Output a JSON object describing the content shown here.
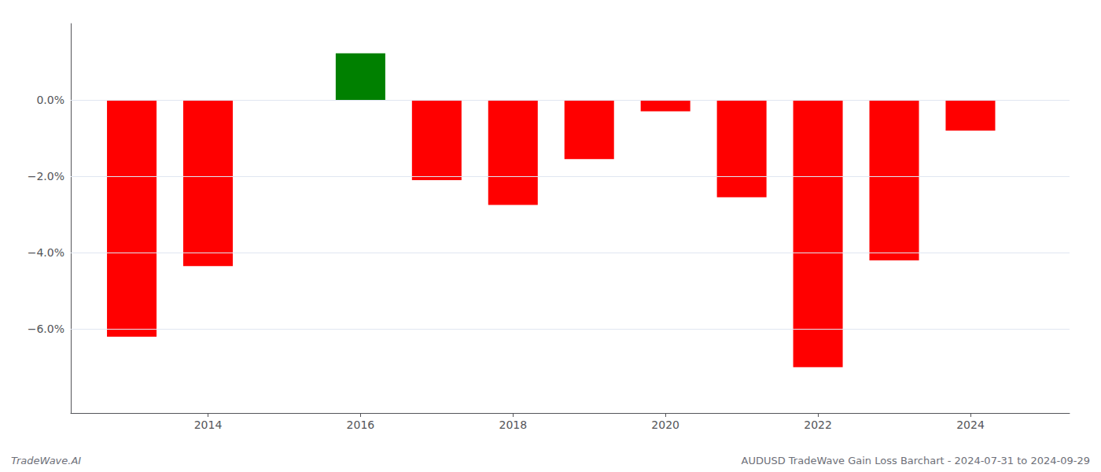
{
  "chart_data": {
    "type": "bar",
    "x": [
      2013,
      2014,
      2015,
      2016,
      2017,
      2018,
      2019,
      2020,
      2021,
      2022,
      2023,
      2024
    ],
    "values": [
      -6.2,
      -4.35,
      0.0,
      1.22,
      -2.1,
      -2.75,
      -1.55,
      -0.3,
      -2.55,
      -7.0,
      -4.2,
      -0.8
    ],
    "colors": [
      "#ff0000",
      "#ff0000",
      "#ff0000",
      "#008000",
      "#ff0000",
      "#ff0000",
      "#ff0000",
      "#ff0000",
      "#ff0000",
      "#ff0000",
      "#ff0000",
      "#ff0000"
    ],
    "xlim": [
      2012.2,
      2025.3
    ],
    "xticks": [
      2014,
      2016,
      2018,
      2020,
      2022,
      2024
    ],
    "ylim": [
      -8.2,
      2.0
    ],
    "yticks": [
      {
        "value": 0.0,
        "label": "0.0%"
      },
      {
        "value": -2.0,
        "label": "−2.0%"
      },
      {
        "value": -4.0,
        "label": "−4.0%"
      },
      {
        "value": -6.0,
        "label": "−6.0%"
      }
    ],
    "grid": true,
    "annotations": [
      "TradeWave.AI",
      "AUDUSD TradeWave Gain Loss Barchart - 2024-07-31 to 2024-09-29"
    ]
  }
}
